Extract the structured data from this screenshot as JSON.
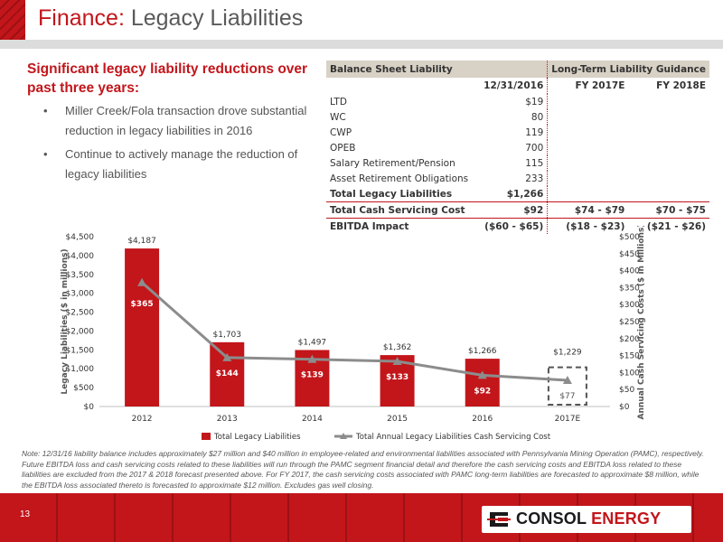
{
  "header": {
    "title_accent": "Finance:",
    "title_rest": "Legacy Liabilities"
  },
  "headline": "Significant legacy liability reductions over past three years:",
  "bullets": [
    "Miller Creek/Fola transaction drove substantial reduction in legacy liabilities in 2016",
    "Continue to actively manage the reduction of legacy liabilities"
  ],
  "table": {
    "header": {
      "left": "Balance Sheet Liability",
      "right": "Long-Term Liability Guidance"
    },
    "columns": [
      "12/31/2016",
      "FY 2017E",
      "FY 2018E"
    ],
    "rows": [
      {
        "label": "LTD",
        "values": [
          "$19",
          "",
          ""
        ]
      },
      {
        "label": "WC",
        "values": [
          "80",
          "",
          ""
        ]
      },
      {
        "label": "CWP",
        "values": [
          "119",
          "",
          ""
        ]
      },
      {
        "label": "OPEB",
        "values": [
          "700",
          "",
          ""
        ]
      },
      {
        "label": "Salary Retirement/Pension",
        "values": [
          "115",
          "",
          ""
        ]
      },
      {
        "label": "Asset Retirement Obligations",
        "values": [
          "233",
          "",
          ""
        ]
      },
      {
        "label": "Total Legacy Liabilities",
        "values": [
          "$1,266",
          "",
          ""
        ]
      },
      {
        "label": "Total Cash Servicing Cost",
        "values": [
          "$92",
          "$74 - $79",
          "$70 - $75"
        ]
      },
      {
        "label": "EBITDA Impact",
        "values": [
          "($60 - $65)",
          "($18 - $23)",
          "($21 - $26)"
        ]
      }
    ]
  },
  "chart_data": {
    "type": "bar",
    "categories": [
      "2012",
      "2013",
      "2014",
      "2015",
      "2016",
      "2017E"
    ],
    "series": [
      {
        "name": "Total Legacy Liabilities",
        "type": "bar",
        "axis": "left",
        "values": [
          4187,
          1703,
          1497,
          1362,
          1266,
          1229
        ],
        "labels": [
          "$4,187",
          "$1,703",
          "$1,497",
          "$1,362",
          "$1,266",
          "$1,229"
        ]
      },
      {
        "name": "Total Annual Legacy Liabilities Cash Servicing Cost",
        "type": "line",
        "axis": "right",
        "values": [
          365,
          144,
          139,
          133,
          92,
          77
        ],
        "labels": [
          "$365",
          "$144",
          "$139",
          "$133",
          "$92",
          "$77"
        ]
      }
    ],
    "ylabel": "Legacy Liabilities ($ in millions)",
    "y2label": "Annual Cash Servicing Costs ($ in Millions)",
    "ylim": [
      0,
      4500
    ],
    "y2lim": [
      0,
      500
    ],
    "yticks": [
      "$0",
      "$500",
      "$1,000",
      "$1,500",
      "$2,000",
      "$2,500",
      "$3,000",
      "$3,500",
      "$4,000",
      "$4,500"
    ],
    "y2ticks": [
      "$0",
      "$50",
      "$100",
      "$150",
      "$200",
      "$250",
      "$300",
      "$350",
      "$400",
      "$450",
      "$500"
    ],
    "legend_position": "bottom",
    "grid": false,
    "colors": {
      "bar": "#c2161b",
      "line": "#8c8c8c",
      "estimate_bar": "#ffffff",
      "estimate_box": "#555555"
    }
  },
  "note": "Note: 12/31/16 liability balance includes approximately $27 million and $40 million in employee-related and environmental liabilities associated with Pennsylvania Mining Operation (PAMC), respectively. Future EBITDA loss and cash servicing costs related to these liabilities will run through the PAMC segment financial detail and therefore the cash servicing costs and EBITDA loss related to these liabilities are excluded from the 2017 & 2018 forecast presented above. For FY 2017, the cash servicing costs associated with PAMC long-term liabilities are forecasted to approximate $8 million, while the EBITDA loss associated thereto is forecasted to approximate $12 million. Excludes gas well closing.",
  "footer": {
    "page_number": "13",
    "logo_left": "CONSOL",
    "logo_right": "ENERGY"
  },
  "colors": {
    "brand_red": "#c2161b",
    "footer_dark_red": "#9e1014",
    "table_header": "#d8d1c5",
    "line_gray": "#8c8c8c"
  }
}
